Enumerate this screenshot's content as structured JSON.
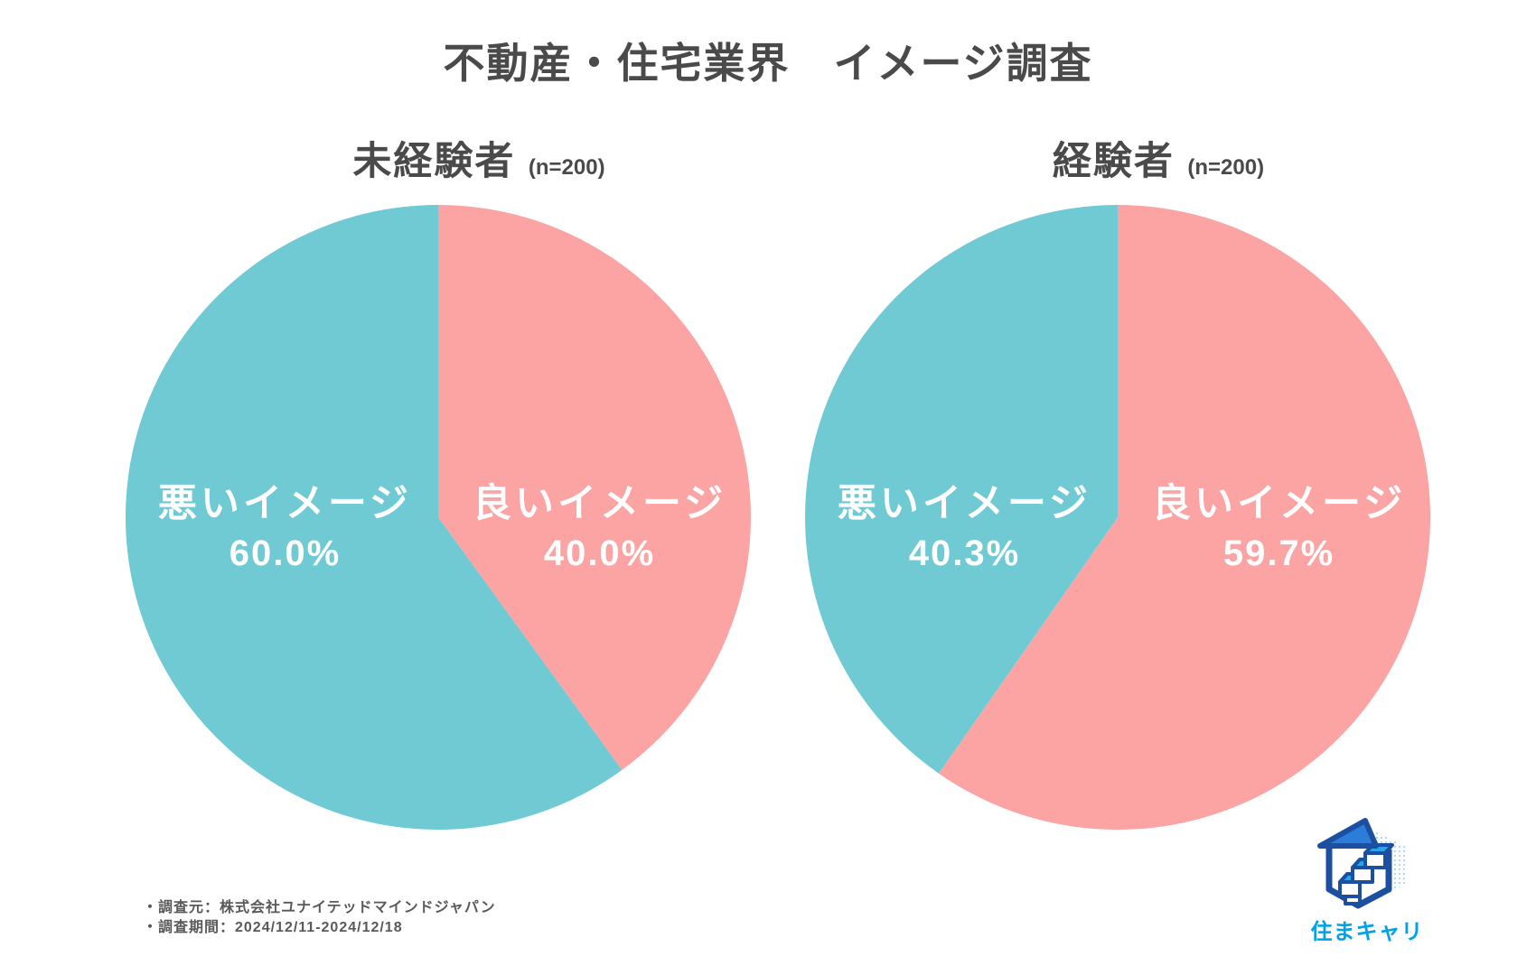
{
  "header": {
    "title": "不動産・住宅業界　イメージ調査"
  },
  "chart_data": [
    {
      "type": "pie",
      "title": "未経験者",
      "n_label": "(n=200)",
      "legend_position": "inside",
      "start_angle": "12-o-clock-clockwise",
      "slices": [
        {
          "id": "good",
          "label": "良いイメージ",
          "value": 40.0,
          "display": "40.0%",
          "color": "#fca3a3",
          "label_side": "right"
        },
        {
          "id": "bad",
          "label": "悪いイメージ",
          "value": 60.0,
          "display": "60.0%",
          "color": "#6fcad4",
          "label_side": "left"
        }
      ]
    },
    {
      "type": "pie",
      "title": "経験者",
      "n_label": "(n=200)",
      "legend_position": "inside",
      "start_angle": "12-o-clock-clockwise",
      "slices": [
        {
          "id": "good",
          "label": "良いイメージ",
          "value": 59.7,
          "display": "59.7%",
          "color": "#fca3a3",
          "label_side": "right"
        },
        {
          "id": "bad",
          "label": "悪いイメージ",
          "value": 40.3,
          "display": "40.3%",
          "color": "#6fcad4",
          "label_side": "left"
        }
      ]
    }
  ],
  "footer": {
    "lines": [
      "・調査元：株式会社ユナイテッドマインドジャパン",
      "・調査期間：2024/12/11-2024/12/18"
    ]
  },
  "logo": {
    "text": "住まキャリ",
    "colors": {
      "accent": "#00a3e9",
      "navy": "#1d4fa0",
      "mid": "#2b7dd9",
      "light": "#a8d8f0"
    }
  },
  "colors": {
    "teal": "#6fcad4",
    "pink": "#fca3a3",
    "text_dark": "#4a4a4a",
    "text_footer": "#595959",
    "label_text": "#ffffff",
    "background": "#ffffff"
  }
}
